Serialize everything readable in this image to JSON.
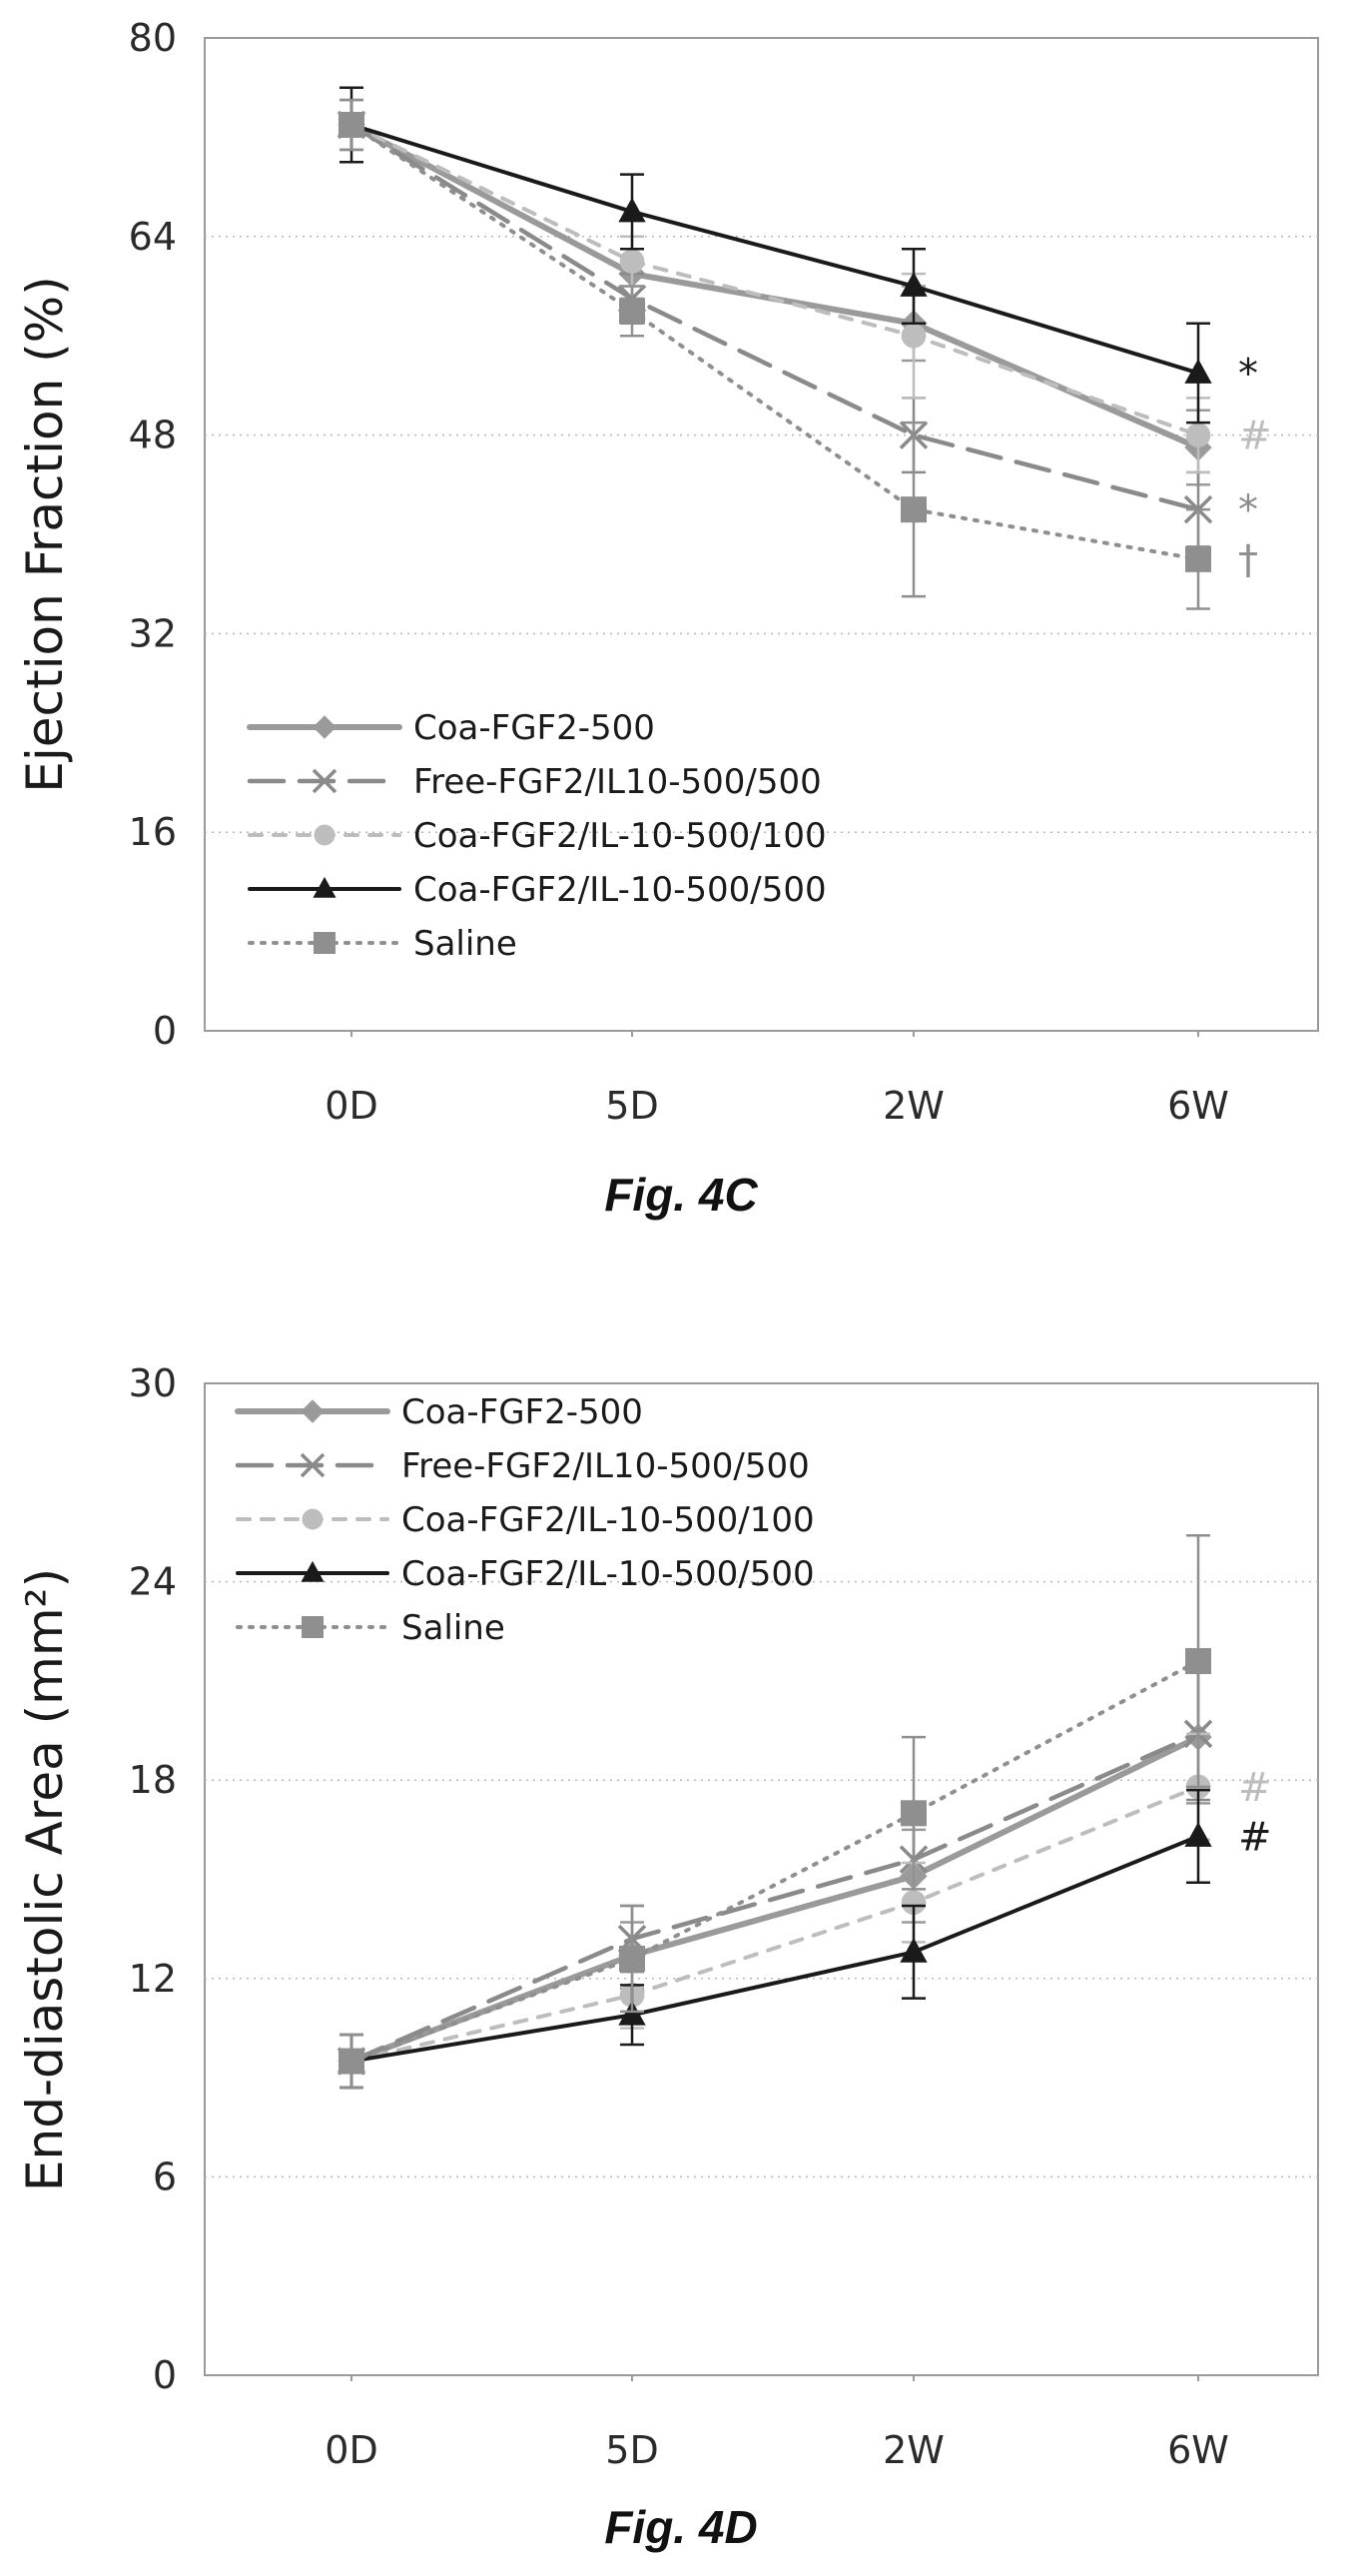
{
  "chart_data": [
    {
      "type": "line",
      "figure_label": "Fig. 4C",
      "ylabel": "Ejection Fraction (%)",
      "xlabel": "",
      "categories": [
        "0D",
        "5D",
        "2W",
        "6W"
      ],
      "ylim": [
        0,
        80
      ],
      "yticks": [
        "0",
        "16",
        "32",
        "48",
        "64",
        "80"
      ],
      "grid": "horizontal-dotted",
      "legend_position": "bottom-left",
      "series": [
        {
          "name": "Coa-FGF2-500",
          "values": [
            73,
            61,
            57,
            47
          ],
          "errors": [
            2,
            2,
            3,
            3
          ],
          "color": "#9a9a9a",
          "dash": "solid-thick",
          "marker": "diamond",
          "annotation": ""
        },
        {
          "name": "Free-FGF2/IL10-500/500",
          "values": [
            73,
            59,
            48,
            42
          ],
          "errors": [
            2,
            2,
            3,
            3
          ],
          "color": "#8a8a8a",
          "dash": "long-dash",
          "marker": "x",
          "annotation": "*"
        },
        {
          "name": "Coa-FGF2/IL-10-500/100",
          "values": [
            73,
            62,
            56,
            48
          ],
          "errors": [
            2,
            2,
            5,
            3
          ],
          "color": "#bdbdbd",
          "dash": "short-dash",
          "marker": "circle",
          "annotation": "#"
        },
        {
          "name": "Coa-FGF2/IL-10-500/500",
          "values": [
            73,
            66,
            60,
            53
          ],
          "errors": [
            3,
            3,
            3,
            4
          ],
          "color": "#1a1a1a",
          "dash": "solid",
          "marker": "triangle",
          "annotation": "*"
        },
        {
          "name": "Saline",
          "values": [
            73,
            58,
            42,
            38
          ],
          "errors": [
            2,
            2,
            7,
            4
          ],
          "color": "#8f8f8f",
          "dash": "dotted",
          "marker": "square",
          "annotation": "†"
        }
      ]
    },
    {
      "type": "line",
      "figure_label": "Fig. 4D",
      "ylabel": "End-diastolic Area (mm²)",
      "xlabel": "",
      "categories": [
        "0D",
        "5D",
        "2W",
        "6W"
      ],
      "ylim": [
        0,
        30
      ],
      "yticks": [
        "0",
        "6",
        "12",
        "18",
        "24",
        "30"
      ],
      "grid": "horizontal-dotted",
      "legend_position": "top-left",
      "series": [
        {
          "name": "Coa-FGF2-500",
          "values": [
            9.5,
            12.7,
            15.1,
            19.3
          ],
          "errors": [
            0.8,
            1.0,
            1.4,
            2.0
          ],
          "color": "#9a9a9a",
          "dash": "solid-thick",
          "marker": "diamond",
          "annotation": ""
        },
        {
          "name": "Free-FGF2/IL10-500/500",
          "values": [
            9.5,
            13.2,
            15.6,
            19.4
          ],
          "errors": [
            0.8,
            1.0,
            1.4,
            2.0
          ],
          "color": "#8a8a8a",
          "dash": "long-dash",
          "marker": "x",
          "annotation": ""
        },
        {
          "name": "Coa-FGF2/IL-10-500/100",
          "values": [
            9.5,
            11.5,
            14.3,
            17.8
          ],
          "errors": [
            0.8,
            1.0,
            1.2,
            1.6
          ],
          "color": "#bdbdbd",
          "dash": "short-dash",
          "marker": "circle",
          "annotation": "#"
        },
        {
          "name": "Coa-FGF2/IL-10-500/500",
          "values": [
            9.5,
            10.9,
            12.8,
            16.3
          ],
          "errors": [
            0.8,
            0.9,
            1.4,
            1.4
          ],
          "color": "#1a1a1a",
          "dash": "solid",
          "marker": "triangle",
          "annotation": "#"
        },
        {
          "name": "Saline",
          "values": [
            9.5,
            12.6,
            17.0,
            21.6
          ],
          "errors": [
            0.8,
            1.6,
            2.3,
            3.8
          ],
          "color": "#8f8f8f",
          "dash": "dotted",
          "marker": "square",
          "annotation": ""
        }
      ]
    }
  ]
}
